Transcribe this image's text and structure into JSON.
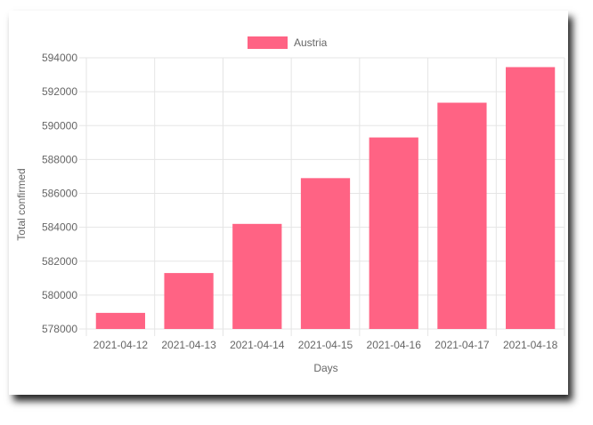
{
  "chart_data": {
    "type": "bar",
    "categories": [
      "2021-04-12",
      "2021-04-13",
      "2021-04-14",
      "2021-04-15",
      "2021-04-16",
      "2021-04-17",
      "2021-04-18"
    ],
    "series": [
      {
        "name": "Austria",
        "values": [
          578950,
          581300,
          584200,
          586900,
          589300,
          591350,
          593450
        ]
      }
    ],
    "xlabel": "Days",
    "ylabel": "Total confirmed",
    "ylim": [
      578000,
      594000
    ],
    "yticks": [
      "594000",
      "592000",
      "590000",
      "588000",
      "586000",
      "584000",
      "582000",
      "580000",
      "578000"
    ],
    "grid": true,
    "legend_position": "top",
    "colors": {
      "bar": "#ff6384",
      "grid": "#e5e5e5",
      "text": "#666666"
    }
  }
}
